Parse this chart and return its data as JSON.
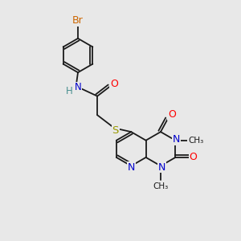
{
  "background_color": "#e8e8e8",
  "bond_color": "#1a1a1a",
  "figsize": [
    3.0,
    3.0
  ],
  "dpi": 100,
  "atoms": {
    "Br": {
      "color": "#cc6600"
    },
    "N": {
      "color": "#0000cc"
    },
    "O": {
      "color": "#ff0000"
    },
    "S": {
      "color": "#999900"
    },
    "H": {
      "color": "#4a9090"
    },
    "C": {
      "color": "#1a1a1a"
    }
  },
  "bond_lw": 1.3
}
